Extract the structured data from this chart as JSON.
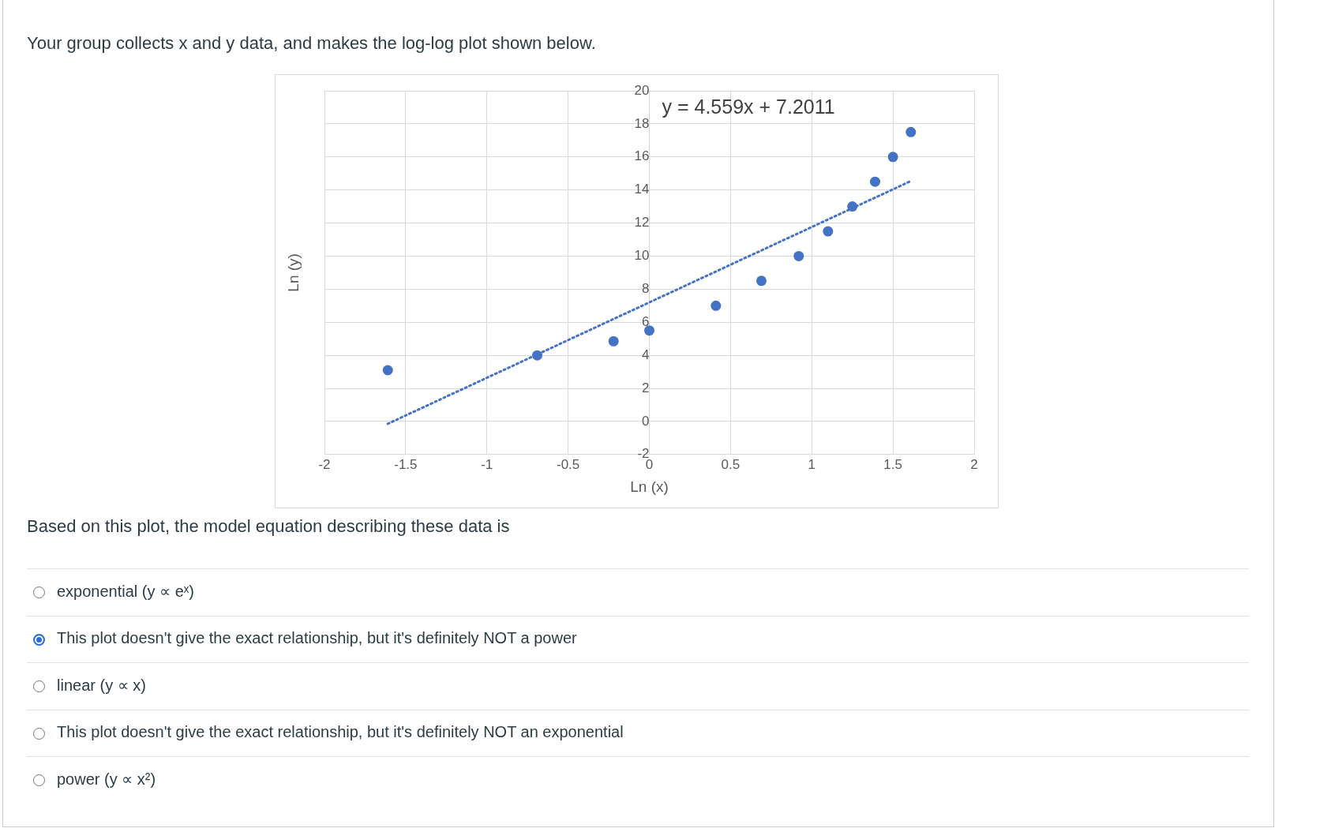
{
  "chart_data": {
    "type": "scatter",
    "title": "Your group collects x and y data, and makes the log-log plot shown below.",
    "xlabel": "Ln (x)",
    "ylabel": "Ln (y)",
    "xlim": [
      -2,
      2
    ],
    "xticks": [
      -2,
      -1.5,
      -1,
      -0.5,
      0,
      0.5,
      1,
      1.5,
      2
    ],
    "ylim": [
      -2,
      20
    ],
    "yticks": [
      -2,
      0,
      2,
      4,
      6,
      8,
      10,
      12,
      14,
      16,
      18,
      20
    ],
    "grid": true,
    "legend": false,
    "series": [
      {
        "color": "#4472c4",
        "marker": "circle",
        "x": [
          -1.61,
          -0.69,
          -0.22,
          0,
          0.41,
          0.69,
          0.92,
          1.1,
          1.25,
          1.39,
          1.5,
          1.61
        ],
        "values": [
          3.1,
          4.0,
          4.85,
          5.5,
          7.0,
          8.5,
          10.0,
          11.5,
          13.0,
          14.5,
          16.0,
          17.5
        ]
      },
      {
        "type": "line",
        "color": "#4472c4",
        "marker": "none",
        "line_style": "dotted",
        "x": [
          -1.61,
          1.61
        ],
        "values": [
          -0.14,
          14.54
        ]
      }
    ],
    "annotations": [
      "y = 4.559x + 7.2011",
      "Based on this plot, the model equation describing these data is",
      "exponential (y ∝ eˣ)",
      "This plot doesn't give the exact relationship, but it's definitely NOT a power",
      "linear (y ∝ x)",
      "This plot doesn't give the exact relationship, but it's definitely NOT an exponential",
      "power (y ∝ x²)"
    ]
  }
}
